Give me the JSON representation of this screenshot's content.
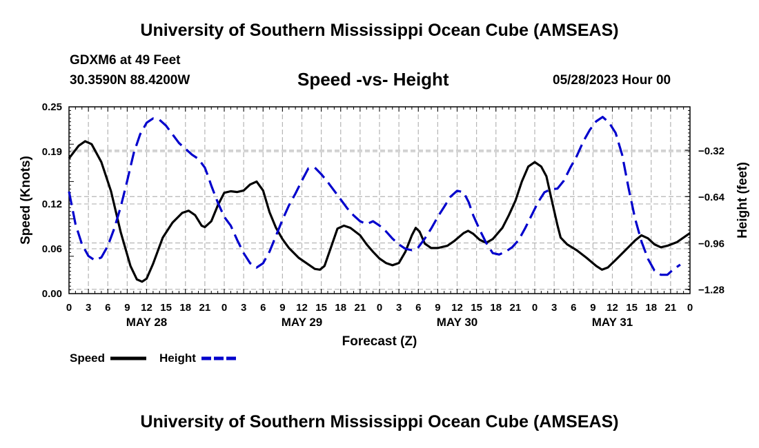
{
  "header": {
    "title": "University of Southern Mississippi Ocean Cube (AMSEAS)",
    "station": "GDXM6 at 49 Feet",
    "coords": "30.3590N  88.4200W",
    "chart_title": "Speed -vs- Height",
    "datetime": "05/28/2023 Hour 00"
  },
  "footer": {
    "title": "University of Southern Mississippi Ocean Cube (AMSEAS)"
  },
  "chart_data": {
    "type": "line",
    "title": "Speed -vs- Height",
    "xlabel": "Forecast (Z)",
    "ylabel": "Speed (Knots)",
    "y2label": "Height (feet)",
    "grid": true,
    "legend_position": "bottom-left",
    "xlim": [
      0,
      96
    ],
    "ylim": [
      0,
      0.25
    ],
    "y2lim": [
      -1.31,
      -0.02
    ],
    "x_ticks": [
      0,
      3,
      6,
      9,
      12,
      15,
      18,
      21,
      24,
      27,
      30,
      33,
      36,
      39,
      42,
      45,
      48,
      51,
      54,
      57,
      60,
      63,
      66,
      69,
      72,
      75,
      78,
      81,
      84,
      87,
      90,
      93,
      96
    ],
    "x_tick_labels": [
      "0",
      "3",
      "6",
      "9",
      "12",
      "15",
      "18",
      "21",
      "0",
      "3",
      "6",
      "9",
      "12",
      "15",
      "18",
      "21",
      "0",
      "3",
      "6",
      "9",
      "12",
      "15",
      "18",
      "21",
      "0",
      "3",
      "6",
      "9",
      "12",
      "15",
      "18",
      "21",
      "0"
    ],
    "date_labels": [
      {
        "x": 12,
        "label": "MAY 28"
      },
      {
        "x": 36,
        "label": "MAY 29"
      },
      {
        "x": 60,
        "label": "MAY 30"
      },
      {
        "x": 84,
        "label": "MAY 31"
      }
    ],
    "y_ticks": [
      0.0,
      0.06,
      0.12,
      0.19,
      0.25
    ],
    "y_tick_labels": [
      "0.00",
      "0.06",
      "0.12",
      "0.19",
      "0.25"
    ],
    "y2_ticks": [
      -0.32,
      -0.64,
      -0.96,
      -1.28
    ],
    "y2_tick_labels": [
      "−0.32",
      "−0.64",
      "−0.96",
      "−1.28"
    ],
    "series": [
      {
        "name": "Speed",
        "axis": "left",
        "color": "#000000",
        "dash": "solid",
        "points": [
          [
            0,
            0.181
          ],
          [
            1.5,
            0.198
          ],
          [
            2.5,
            0.204
          ],
          [
            3.5,
            0.2
          ],
          [
            5,
            0.176
          ],
          [
            6.5,
            0.137
          ],
          [
            8,
            0.082
          ],
          [
            9.5,
            0.037
          ],
          [
            10.5,
            0.019
          ],
          [
            11.3,
            0.016
          ],
          [
            12,
            0.02
          ],
          [
            13,
            0.04
          ],
          [
            14.5,
            0.075
          ],
          [
            16,
            0.095
          ],
          [
            17.5,
            0.108
          ],
          [
            18.5,
            0.111
          ],
          [
            19.5,
            0.105
          ],
          [
            20.5,
            0.091
          ],
          [
            21,
            0.089
          ],
          [
            22,
            0.097
          ],
          [
            23,
            0.118
          ],
          [
            24,
            0.135
          ],
          [
            25,
            0.137
          ],
          [
            26,
            0.136
          ],
          [
            27,
            0.138
          ],
          [
            28,
            0.146
          ],
          [
            29,
            0.15
          ],
          [
            30,
            0.138
          ],
          [
            31,
            0.109
          ],
          [
            32,
            0.088
          ],
          [
            33,
            0.073
          ],
          [
            34,
            0.061
          ],
          [
            35.5,
            0.048
          ],
          [
            37,
            0.039
          ],
          [
            38,
            0.033
          ],
          [
            38.8,
            0.032
          ],
          [
            39.5,
            0.037
          ],
          [
            40.5,
            0.062
          ],
          [
            41.5,
            0.087
          ],
          [
            42.5,
            0.091
          ],
          [
            43.5,
            0.088
          ],
          [
            45,
            0.078
          ],
          [
            46,
            0.066
          ],
          [
            47,
            0.056
          ],
          [
            48,
            0.047
          ],
          [
            49,
            0.041
          ],
          [
            50,
            0.038
          ],
          [
            51,
            0.041
          ],
          [
            52,
            0.056
          ],
          [
            53,
            0.078
          ],
          [
            53.6,
            0.088
          ],
          [
            54.2,
            0.083
          ],
          [
            55,
            0.067
          ],
          [
            56,
            0.061
          ],
          [
            57,
            0.061
          ],
          [
            58.5,
            0.064
          ],
          [
            59.5,
            0.07
          ],
          [
            61,
            0.081
          ],
          [
            61.7,
            0.084
          ],
          [
            62.5,
            0.08
          ],
          [
            63.5,
            0.072
          ],
          [
            64.5,
            0.068
          ],
          [
            65.5,
            0.073
          ],
          [
            67,
            0.088
          ],
          [
            68,
            0.105
          ],
          [
            69,
            0.124
          ],
          [
            70,
            0.15
          ],
          [
            71,
            0.17
          ],
          [
            72,
            0.176
          ],
          [
            73,
            0.17
          ],
          [
            73.8,
            0.157
          ],
          [
            74.5,
            0.13
          ],
          [
            75.5,
            0.092
          ],
          [
            76,
            0.075
          ],
          [
            77,
            0.066
          ],
          [
            78.5,
            0.058
          ],
          [
            80,
            0.048
          ],
          [
            81.5,
            0.037
          ],
          [
            82.4,
            0.032
          ],
          [
            83.3,
            0.035
          ],
          [
            84.5,
            0.045
          ],
          [
            86,
            0.058
          ],
          [
            87.5,
            0.071
          ],
          [
            88.5,
            0.078
          ],
          [
            89.5,
            0.074
          ],
          [
            90.5,
            0.066
          ],
          [
            91.5,
            0.062
          ],
          [
            92.5,
            0.064
          ],
          [
            94,
            0.069
          ],
          [
            96,
            0.081
          ]
        ]
      },
      {
        "name": "Height",
        "axis": "right",
        "color": "#0000cc",
        "dash": "dashed",
        "points": [
          [
            0,
            -0.605
          ],
          [
            1,
            -0.83
          ],
          [
            2,
            -0.97
          ],
          [
            3,
            -1.05
          ],
          [
            4,
            -1.08
          ],
          [
            5,
            -1.06
          ],
          [
            6,
            -0.98
          ],
          [
            7,
            -0.86
          ],
          [
            8,
            -0.71
          ],
          [
            9,
            -0.53
          ],
          [
            10,
            -0.34
          ],
          [
            11,
            -0.21
          ],
          [
            12,
            -0.13
          ],
          [
            13,
            -0.1
          ],
          [
            14,
            -0.11
          ],
          [
            15,
            -0.15
          ],
          [
            16,
            -0.21
          ],
          [
            17,
            -0.27
          ],
          [
            18,
            -0.31
          ],
          [
            19,
            -0.35
          ],
          [
            20,
            -0.38
          ],
          [
            21,
            -0.44
          ],
          [
            21.5,
            -0.5
          ],
          [
            22,
            -0.565
          ],
          [
            23,
            -0.68
          ],
          [
            24,
            -0.78
          ],
          [
            25,
            -0.84
          ],
          [
            26,
            -0.94
          ],
          [
            27,
            -1.03
          ],
          [
            28,
            -1.1
          ],
          [
            29,
            -1.13
          ],
          [
            30,
            -1.1
          ],
          [
            31,
            -1.02
          ],
          [
            32,
            -0.91
          ],
          [
            33,
            -0.8
          ],
          [
            34,
            -0.7
          ],
          [
            35,
            -0.62
          ],
          [
            36,
            -0.53
          ],
          [
            37,
            -0.445
          ],
          [
            38,
            -0.44
          ],
          [
            39,
            -0.485
          ],
          [
            40,
            -0.54
          ],
          [
            41,
            -0.6
          ],
          [
            42,
            -0.66
          ],
          [
            43,
            -0.72
          ],
          [
            44,
            -0.77
          ],
          [
            45,
            -0.81
          ],
          [
            46,
            -0.83
          ],
          [
            47,
            -0.81
          ],
          [
            48,
            -0.84
          ],
          [
            49,
            -0.88
          ],
          [
            50,
            -0.93
          ],
          [
            51,
            -0.97
          ],
          [
            52,
            -1.0
          ],
          [
            53,
            -1.01
          ],
          [
            54,
            -0.99
          ],
          [
            55,
            -0.93
          ],
          [
            56,
            -0.86
          ],
          [
            57,
            -0.78
          ],
          [
            58,
            -0.71
          ],
          [
            59,
            -0.64
          ],
          [
            60,
            -0.6
          ],
          [
            61,
            -0.61
          ],
          [
            61.8,
            -0.68
          ],
          [
            62.5,
            -0.77
          ],
          [
            63.5,
            -0.87
          ],
          [
            64.5,
            -0.96
          ],
          [
            65.5,
            -1.03
          ],
          [
            66.5,
            -1.04
          ],
          [
            67.5,
            -1.02
          ],
          [
            68.5,
            -0.99
          ],
          [
            69.5,
            -0.94
          ],
          [
            70.5,
            -0.86
          ],
          [
            71.5,
            -0.77
          ],
          [
            72.5,
            -0.68
          ],
          [
            73.5,
            -0.61
          ],
          [
            74.5,
            -0.59
          ],
          [
            75.5,
            -0.585
          ],
          [
            76.5,
            -0.53
          ],
          [
            77.5,
            -0.44
          ],
          [
            78.5,
            -0.36
          ],
          [
            79.5,
            -0.26
          ],
          [
            80.5,
            -0.18
          ],
          [
            81.5,
            -0.12
          ],
          [
            82.5,
            -0.09
          ],
          [
            83.5,
            -0.13
          ],
          [
            84.5,
            -0.2
          ],
          [
            85.5,
            -0.35
          ],
          [
            86.5,
            -0.58
          ],
          [
            87.5,
            -0.79
          ],
          [
            88.5,
            -0.95
          ],
          [
            89.5,
            -1.07
          ],
          [
            90.5,
            -1.15
          ],
          [
            91.5,
            -1.18
          ],
          [
            92.5,
            -1.18
          ],
          [
            93.5,
            -1.14
          ],
          [
            94.5,
            -1.11
          ]
        ]
      }
    ]
  }
}
